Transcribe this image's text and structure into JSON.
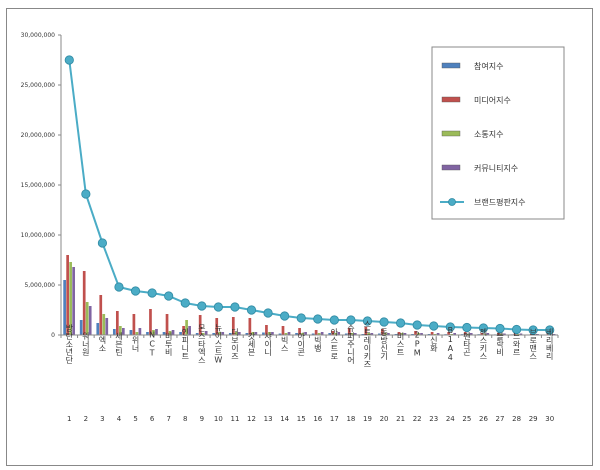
{
  "chart_data": {
    "type": "bar",
    "ylim": [
      0,
      30000000
    ],
    "yticks": [
      "30,000,000",
      "25,000,000",
      "20,000,000",
      "15,000,000",
      "10,000,000",
      "5,000,000",
      "0"
    ],
    "ranks": [
      "1",
      "2",
      "3",
      "4",
      "5",
      "6",
      "7",
      "8",
      "9",
      "10",
      "11",
      "12",
      "13",
      "14",
      "15",
      "16",
      "17",
      "18",
      "19",
      "20",
      "21",
      "22",
      "23",
      "24",
      "25",
      "26",
      "27",
      "28",
      "29",
      "30"
    ],
    "categories": [
      "방탄소년단",
      "워너원",
      "엑소",
      "세븐틴",
      "위너",
      "NCT",
      "비투비",
      "인피니트",
      "몬스타엑스",
      "뉴이스트W",
      "더보이즈",
      "갓세븐",
      "샤이니",
      "빅스",
      "아이콘",
      "빅뱅",
      "아스트로",
      "슈퍼주니어",
      "스트레이키즈",
      "동방신기",
      "비스트",
      "2PM",
      "신화",
      "B1A4",
      "펜타곤",
      "젝스키스",
      "블락비",
      "느와르",
      "브로맨스",
      "베리베리"
    ],
    "series": [
      {
        "name": "참여지수",
        "color": "#4f81bd",
        "values": [
          5500000,
          1500000,
          1200000,
          600000,
          500000,
          300000,
          300000,
          300000,
          200000,
          200000,
          200000,
          200000,
          250000,
          150000,
          200000,
          150000,
          200000,
          150000,
          100000,
          150000,
          100000,
          100000,
          100000,
          80000,
          80000,
          80000,
          60000,
          60000,
          50000,
          50000
        ]
      },
      {
        "name": "미디어지수",
        "color": "#c0504d",
        "values": [
          8000000,
          6400000,
          4000000,
          2400000,
          2100000,
          2600000,
          2100000,
          900000,
          2000000,
          1700000,
          1800000,
          1700000,
          1000000,
          900000,
          700000,
          500000,
          400000,
          700000,
          800000,
          600000,
          300000,
          400000,
          300000,
          300000,
          300000,
          200000,
          200000,
          150000,
          150000,
          150000
        ]
      },
      {
        "name": "소통지수",
        "color": "#9bbb59",
        "values": [
          7300000,
          3300000,
          2100000,
          900000,
          300000,
          500000,
          400000,
          1500000,
          200000,
          300000,
          300000,
          300000,
          300000,
          200000,
          200000,
          200000,
          200000,
          200000,
          200000,
          200000,
          200000,
          200000,
          100000,
          100000,
          100000,
          100000,
          100000,
          100000,
          50000,
          50000
        ]
      },
      {
        "name": "커뮤니티지수",
        "color": "#8064a2",
        "values": [
          6800000,
          2900000,
          1700000,
          700000,
          700000,
          600000,
          500000,
          900000,
          400000,
          300000,
          300000,
          300000,
          300000,
          300000,
          300000,
          300000,
          300000,
          200000,
          200000,
          200000,
          200000,
          200000,
          200000,
          200000,
          200000,
          200000,
          150000,
          150000,
          100000,
          100000
        ]
      },
      {
        "name": "브랜드평판지수",
        "color": "#4bacc6",
        "values": [
          27500000,
          14100000,
          9200000,
          4800000,
          4400000,
          4200000,
          3900000,
          3200000,
          2900000,
          2800000,
          2800000,
          2500000,
          2200000,
          1900000,
          1700000,
          1600000,
          1500000,
          1500000,
          1400000,
          1300000,
          1200000,
          1000000,
          900000,
          800000,
          750000,
          700000,
          650000,
          550000,
          500000,
          500000
        ]
      }
    ]
  }
}
